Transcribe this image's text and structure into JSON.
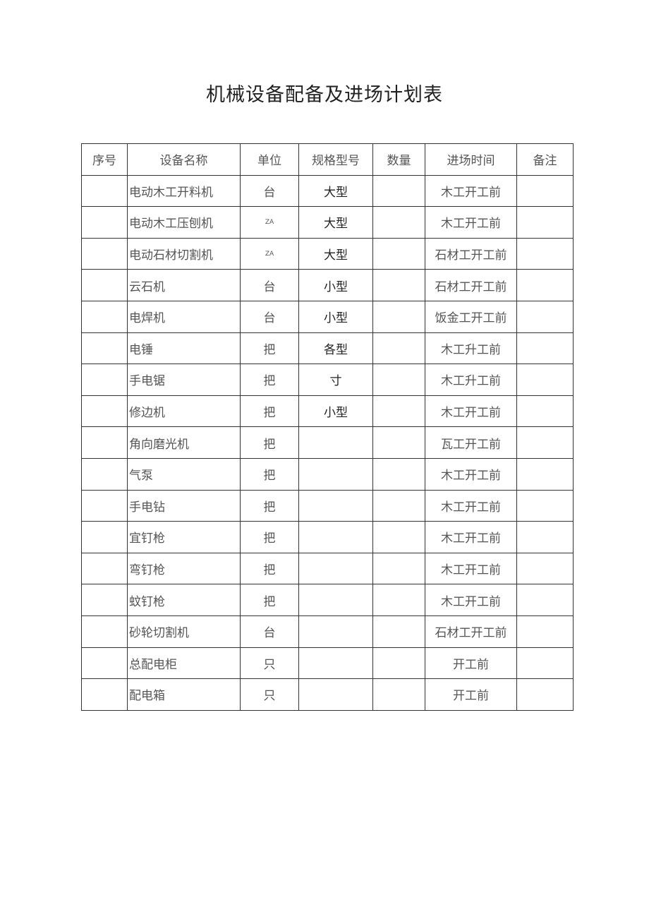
{
  "title": "机械设备配备及进场计划表",
  "headers": [
    "序号",
    "设备名称",
    "单位",
    "规格型号",
    "数量",
    "进场时间",
    "备注"
  ],
  "rows": [
    {
      "no": "",
      "name": "电动木工开料机",
      "unit": "台",
      "spec": "大型",
      "qty": "",
      "time": "木工开工前",
      "note": ""
    },
    {
      "no": "",
      "name": "电动木工压刨机",
      "unit": "ZA",
      "spec": "大型",
      "qty": "",
      "time": "木工开工前",
      "note": ""
    },
    {
      "no": "",
      "name": "电动石材切割机",
      "unit": "ZA",
      "spec": "大型",
      "qty": "",
      "time": "石材工开工前",
      "note": ""
    },
    {
      "no": "",
      "name": "云石机",
      "unit": "台",
      "spec": "小型",
      "qty": "",
      "time": "石材工开工前",
      "note": ""
    },
    {
      "no": "",
      "name": "电焊机",
      "unit": "台",
      "spec": "小型",
      "qty": "",
      "time": "饭金工开工前",
      "note": ""
    },
    {
      "no": "",
      "name": "电锤",
      "unit": "把",
      "spec": "各型",
      "qty": "",
      "time": "木工升工前",
      "note": ""
    },
    {
      "no": "",
      "name": "手电锯",
      "unit": "把",
      "spec": "寸",
      "qty": "",
      "time": "木工升工前",
      "note": ""
    },
    {
      "no": "",
      "name": "修边机",
      "unit": "把",
      "spec": "小型",
      "qty": "",
      "time": "木工开工前",
      "note": ""
    },
    {
      "no": "",
      "name": "角向磨光机",
      "unit": "把",
      "spec": "",
      "qty": "",
      "time": "瓦工开工前",
      "note": ""
    },
    {
      "no": "",
      "name": "气泵",
      "unit": "把",
      "spec": "",
      "qty": "",
      "time": "木工开工前",
      "note": ""
    },
    {
      "no": "",
      "name": "手电钻",
      "unit": "把",
      "spec": "",
      "qty": "",
      "time": "木工开工前",
      "note": ""
    },
    {
      "no": "",
      "name": "宜钉枪",
      "unit": "把",
      "spec": "",
      "qty": "",
      "time": "木工开工前",
      "note": ""
    },
    {
      "no": "",
      "name": "弯钉枪",
      "unit": "把",
      "spec": "",
      "qty": "",
      "time": "木工开工前",
      "note": ""
    },
    {
      "no": "",
      "name": "蚊钉枪",
      "unit": "把",
      "spec": "",
      "qty": "",
      "time": "木工开工前",
      "note": ""
    },
    {
      "no": "",
      "name": "砂轮切割机",
      "unit": "台",
      "spec": "",
      "qty": "",
      "time": "石材工开工前",
      "note": ""
    },
    {
      "no": "",
      "name": "总配电柜",
      "unit": "只",
      "spec": "",
      "qty": "",
      "time": "开工前",
      "note": ""
    },
    {
      "no": "",
      "name": "配电箱",
      "unit": "只",
      "spec": "",
      "qty": "",
      "time": "开工前",
      "note": ""
    }
  ]
}
